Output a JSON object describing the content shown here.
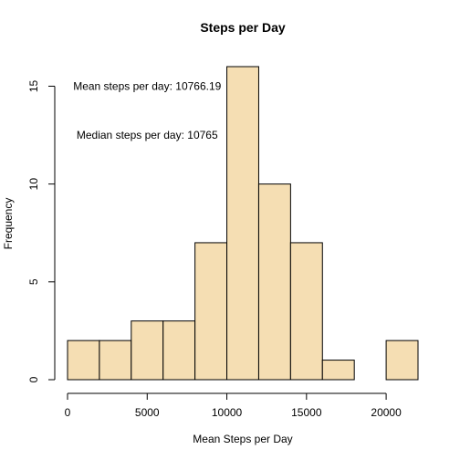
{
  "chart_data": {
    "type": "bar",
    "title": "Steps per Day",
    "xlabel": "Mean Steps per Day",
    "ylabel": "Frequency",
    "bin_edges": [
      0,
      2000,
      4000,
      6000,
      8000,
      10000,
      12000,
      14000,
      16000,
      18000,
      20000,
      22000
    ],
    "values": [
      2,
      2,
      3,
      3,
      7,
      16,
      10,
      7,
      1,
      0,
      2
    ],
    "xlim": [
      0,
      22000
    ],
    "ylim": [
      0,
      16
    ],
    "x_ticks": [
      0,
      5000,
      10000,
      15000,
      20000
    ],
    "y_ticks": [
      0,
      5,
      10,
      15
    ],
    "bar_color": "#F5DEB3",
    "grid": false,
    "annotations": [
      {
        "text": "Mean steps per day:  10766.19",
        "x": 5000,
        "y": 15
      },
      {
        "text": "Median steps per day:  10765",
        "x": 5000,
        "y": 12.5
      }
    ]
  }
}
